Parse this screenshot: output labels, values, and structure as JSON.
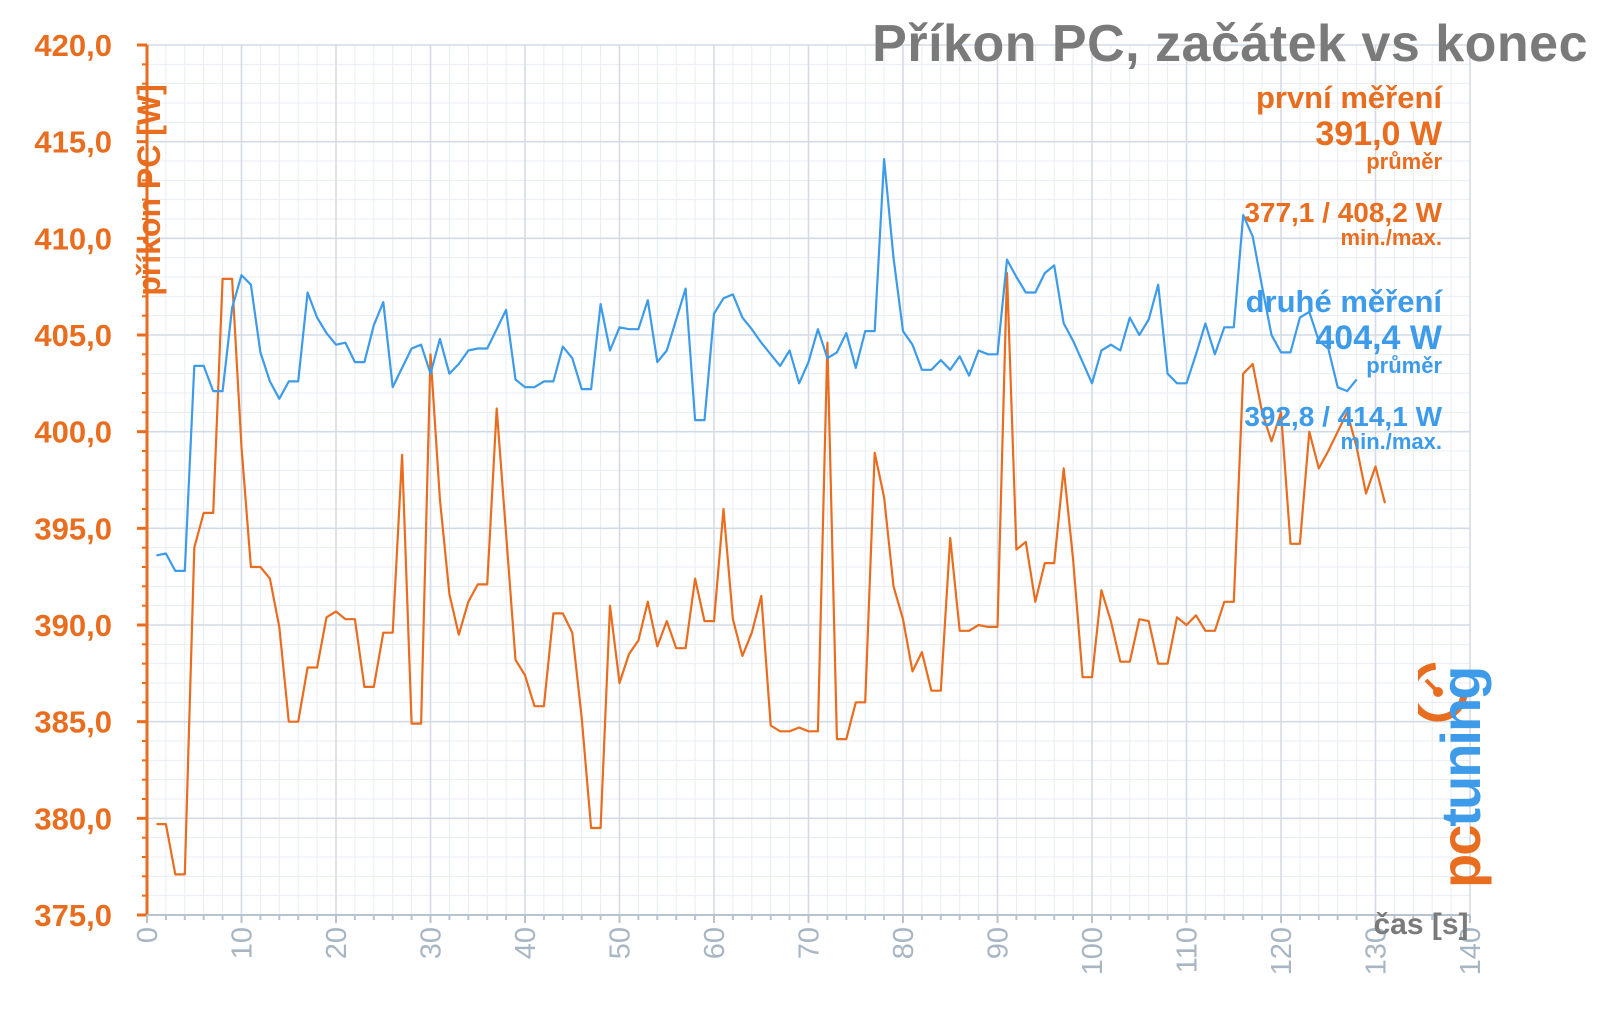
{
  "chart_data": {
    "type": "line",
    "title": "Příkon PC, začátek vs konec",
    "xlabel": "čas [s]",
    "ylabel": "příkon PC [W]",
    "xlim": [
      0,
      140
    ],
    "ylim": [
      375,
      420
    ],
    "x_ticks": [
      "0",
      "10",
      "20",
      "30",
      "40",
      "50",
      "60",
      "70",
      "80",
      "90",
      "100",
      "110",
      "120",
      "130",
      "140"
    ],
    "y_ticks": [
      "375,0",
      "380,0",
      "385,0",
      "390,0",
      "395,0",
      "400,0",
      "405,0",
      "410,0",
      "415,0",
      "420,0"
    ],
    "series": [
      {
        "name": "první měření",
        "color": "#e96d1f",
        "avg_label": "391,0 W",
        "avg_caption": "průměr",
        "minmax_label": "377,1 / 408,2 W",
        "minmax_caption": "min./max.",
        "x": [
          1,
          2,
          3,
          4,
          5,
          6,
          7,
          8,
          9,
          10,
          11,
          12,
          13,
          14,
          15,
          16,
          17,
          18,
          19,
          20,
          21,
          22,
          23,
          24,
          25,
          26,
          27,
          28,
          29,
          30,
          31,
          32,
          33,
          34,
          35,
          36,
          37,
          38,
          39,
          40,
          41,
          42,
          43,
          44,
          45,
          46,
          47,
          48,
          49,
          50,
          51,
          52,
          53,
          54,
          55,
          56,
          57,
          58,
          59,
          60,
          61,
          62,
          63,
          64,
          65,
          66,
          67,
          68,
          69,
          70,
          71,
          72,
          73,
          74,
          75,
          76,
          77,
          78,
          79,
          80,
          81,
          82,
          83,
          84,
          85,
          86,
          87,
          88,
          89,
          90,
          91,
          92,
          93,
          94,
          95,
          96,
          97,
          98,
          99,
          100,
          101,
          102,
          103,
          104,
          105,
          106,
          107,
          108,
          109,
          110,
          111,
          112,
          113,
          114,
          115,
          116,
          117,
          118,
          119,
          120,
          121,
          122,
          123,
          124,
          125,
          126,
          127,
          128,
          129,
          130,
          131
        ],
        "values": [
          379.7,
          379.7,
          377.1,
          377.1,
          394.0,
          395.8,
          395.8,
          407.9,
          407.9,
          399.2,
          393.0,
          393.0,
          392.4,
          389.9,
          385.0,
          385.0,
          387.8,
          387.8,
          390.4,
          390.7,
          390.3,
          390.3,
          386.8,
          386.8,
          389.6,
          389.6,
          398.8,
          384.9,
          384.9,
          404.0,
          396.5,
          391.6,
          389.5,
          391.2,
          392.1,
          392.1,
          401.2,
          394.7,
          388.2,
          387.4,
          385.8,
          385.8,
          390.6,
          390.6,
          389.6,
          385.2,
          379.5,
          379.5,
          391.0,
          387.0,
          388.5,
          389.2,
          391.2,
          388.9,
          390.2,
          388.8,
          388.8,
          392.4,
          390.2,
          390.2,
          396.0,
          390.3,
          388.4,
          389.6,
          391.5,
          384.8,
          384.5,
          384.5,
          384.7,
          384.5,
          384.5,
          404.6,
          384.1,
          384.1,
          386.0,
          386.0,
          398.9,
          396.6,
          392.0,
          390.3,
          387.6,
          388.6,
          386.6,
          386.6,
          394.5,
          389.7,
          389.7,
          390.0,
          389.9,
          389.9,
          408.2,
          393.9,
          394.3,
          391.2,
          393.2,
          393.2,
          398.1,
          393.4,
          387.3,
          387.3,
          391.8,
          390.2,
          388.1,
          388.1,
          390.3,
          390.2,
          388.0,
          388.0,
          390.4,
          390.0,
          390.5,
          389.7,
          389.7,
          391.2,
          391.2,
          403.0,
          403.5,
          401.0,
          399.5,
          401.0,
          394.2,
          394.2,
          400.0,
          398.1,
          399.0,
          400.0,
          401.0,
          399.2,
          396.8,
          398.2,
          396.3
        ]
      },
      {
        "name": "druhé měření",
        "color": "#3d9be9",
        "avg_label": "404,4 W",
        "avg_caption": "průměr",
        "minmax_label": "392,8 / 414,1 W",
        "minmax_caption": "min./max.",
        "x": [
          1,
          2,
          3,
          4,
          5,
          6,
          7,
          8,
          9,
          10,
          11,
          12,
          13,
          14,
          15,
          16,
          17,
          18,
          19,
          20,
          21,
          22,
          23,
          24,
          25,
          26,
          27,
          28,
          29,
          30,
          31,
          32,
          33,
          34,
          35,
          36,
          37,
          38,
          39,
          40,
          41,
          42,
          43,
          44,
          45,
          46,
          47,
          48,
          49,
          50,
          51,
          52,
          53,
          54,
          55,
          56,
          57,
          58,
          59,
          60,
          61,
          62,
          63,
          64,
          65,
          66,
          67,
          68,
          69,
          70,
          71,
          72,
          73,
          74,
          75,
          76,
          77,
          78,
          79,
          80,
          81,
          82,
          83,
          84,
          85,
          86,
          87,
          88,
          89,
          90,
          91,
          92,
          93,
          94,
          95,
          96,
          97,
          98,
          99,
          100,
          101,
          102,
          103,
          104,
          105,
          106,
          107,
          108,
          109,
          110,
          111,
          112,
          113,
          114,
          115,
          116,
          117,
          118,
          119,
          120,
          121,
          122,
          123,
          124,
          125,
          126,
          127,
          128
        ],
        "values": [
          393.6,
          393.7,
          392.8,
          392.8,
          403.4,
          403.4,
          402.1,
          402.1,
          406.4,
          408.1,
          407.6,
          404.1,
          402.6,
          401.7,
          402.6,
          402.6,
          407.2,
          405.9,
          405.1,
          404.5,
          404.6,
          403.6,
          403.6,
          405.5,
          406.7,
          402.3,
          403.3,
          404.3,
          404.5,
          403.0,
          404.8,
          403.0,
          403.5,
          404.2,
          404.3,
          404.3,
          405.3,
          406.3,
          402.7,
          402.3,
          402.3,
          402.6,
          402.6,
          404.4,
          403.8,
          402.2,
          402.2,
          406.6,
          404.2,
          405.4,
          405.3,
          405.3,
          406.8,
          403.6,
          404.2,
          405.8,
          407.4,
          400.6,
          400.6,
          406.1,
          406.9,
          407.1,
          405.9,
          405.3,
          404.6,
          404.0,
          403.4,
          404.2,
          402.5,
          403.6,
          405.3,
          403.8,
          404.1,
          405.1,
          403.3,
          405.2,
          405.2,
          414.1,
          409.0,
          405.2,
          404.5,
          403.2,
          403.2,
          403.7,
          403.2,
          403.9,
          402.9,
          404.2,
          404.0,
          404.0,
          408.9,
          408.0,
          407.2,
          407.2,
          408.2,
          408.6,
          405.6,
          404.7,
          403.6,
          402.5,
          404.2,
          404.5,
          404.2,
          405.9,
          405.0,
          405.8,
          407.6,
          403.0,
          402.5,
          402.5,
          404.0,
          405.6,
          404.0,
          405.4,
          405.4,
          411.2,
          410.1,
          407.5,
          405.0,
          404.1,
          404.1,
          405.9,
          406.2,
          404.7,
          404.3,
          402.3,
          402.1,
          402.7
        ]
      }
    ],
    "grid": true,
    "legend_position": "right-inset"
  },
  "watermark": "pctuning"
}
